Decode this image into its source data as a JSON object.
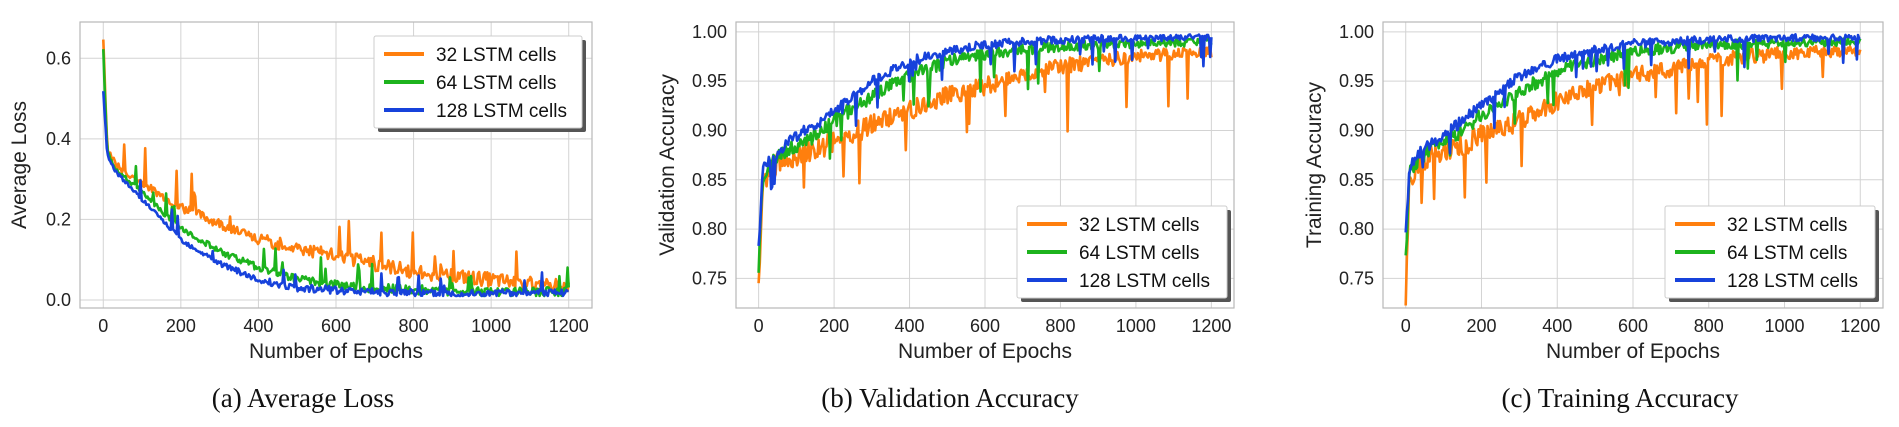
{
  "colors": {
    "s32": "#ff7f0e",
    "s64": "#1db31d",
    "s128": "#1742db",
    "grid": "#d3d3d3",
    "frame": "#b8b8b8"
  },
  "chart_data": [
    {
      "type": "line",
      "caption": "(a) Average Loss",
      "xlabel": "Number of Epochs",
      "ylabel": "Average Loss",
      "xlim": [
        -60,
        1260
      ],
      "ylim": [
        -0.02,
        0.69
      ],
      "xticks": [
        0,
        200,
        400,
        600,
        800,
        1000,
        1200
      ],
      "yticks": [
        0.0,
        0.2,
        0.4,
        0.6
      ],
      "xtick_labels": [
        "0",
        "200",
        "400",
        "600",
        "800",
        "1000",
        "1200"
      ],
      "ytick_labels": [
        "0.0",
        "0.2",
        "0.4",
        "0.6"
      ],
      "grid": true,
      "legend": "top-right",
      "series": [
        {
          "name": "32 LSTM cells",
          "x": [
            0,
            10,
            30,
            60,
            100,
            150,
            200,
            300,
            400,
            500,
            600,
            700,
            800,
            900,
            1000,
            1100,
            1200
          ],
          "y": [
            0.65,
            0.38,
            0.34,
            0.31,
            0.29,
            0.26,
            0.23,
            0.19,
            0.15,
            0.13,
            0.11,
            0.09,
            0.07,
            0.06,
            0.05,
            0.04,
            0.035
          ]
        },
        {
          "name": "64 LSTM cells",
          "x": [
            0,
            10,
            30,
            60,
            100,
            150,
            200,
            300,
            400,
            500,
            600,
            700,
            800,
            900,
            1000,
            1100,
            1200
          ],
          "y": [
            0.62,
            0.37,
            0.33,
            0.3,
            0.27,
            0.22,
            0.18,
            0.12,
            0.08,
            0.05,
            0.04,
            0.03,
            0.025,
            0.022,
            0.02,
            0.02,
            0.02
          ]
        },
        {
          "name": "128 LSTM cells",
          "x": [
            0,
            10,
            30,
            60,
            100,
            150,
            200,
            300,
            400,
            500,
            600,
            700,
            800,
            900,
            1000,
            1100,
            1200
          ],
          "y": [
            0.52,
            0.36,
            0.32,
            0.29,
            0.25,
            0.2,
            0.15,
            0.09,
            0.05,
            0.03,
            0.025,
            0.02,
            0.018,
            0.017,
            0.016,
            0.016,
            0.016
          ]
        }
      ]
    },
    {
      "type": "line",
      "caption": "(b) Validation Accuracy",
      "xlabel": "Number of Epochs",
      "ylabel": "Validation Accuracy",
      "xlim": [
        -60,
        1260
      ],
      "ylim": [
        0.72,
        1.01
      ],
      "xticks": [
        0,
        200,
        400,
        600,
        800,
        1000,
        1200
      ],
      "yticks": [
        0.75,
        0.8,
        0.85,
        0.9,
        0.95,
        1.0
      ],
      "xtick_labels": [
        "0",
        "200",
        "400",
        "600",
        "800",
        "1000",
        "1200"
      ],
      "ytick_labels": [
        "0.75",
        "0.80",
        "0.85",
        "0.90",
        "0.95",
        "1.00"
      ],
      "grid": true,
      "legend": "bottom-right",
      "series": [
        {
          "name": "32 LSTM cells",
          "x": [
            0,
            10,
            30,
            60,
            100,
            150,
            200,
            300,
            400,
            500,
            600,
            700,
            800,
            900,
            1000,
            1100,
            1200
          ],
          "y": [
            0.74,
            0.84,
            0.86,
            0.87,
            0.875,
            0.88,
            0.89,
            0.905,
            0.92,
            0.935,
            0.945,
            0.955,
            0.965,
            0.97,
            0.975,
            0.978,
            0.98
          ]
        },
        {
          "name": "64 LSTM cells",
          "x": [
            0,
            10,
            30,
            60,
            100,
            150,
            200,
            300,
            400,
            500,
            600,
            700,
            800,
            900,
            1000,
            1100,
            1200
          ],
          "y": [
            0.76,
            0.85,
            0.865,
            0.875,
            0.885,
            0.895,
            0.91,
            0.935,
            0.955,
            0.97,
            0.978,
            0.982,
            0.985,
            0.987,
            0.988,
            0.989,
            0.99
          ]
        },
        {
          "name": "128 LSTM cells",
          "x": [
            0,
            10,
            30,
            60,
            100,
            150,
            200,
            300,
            400,
            500,
            600,
            700,
            800,
            900,
            1000,
            1100,
            1200
          ],
          "y": [
            0.78,
            0.86,
            0.87,
            0.88,
            0.895,
            0.905,
            0.92,
            0.95,
            0.97,
            0.98,
            0.987,
            0.99,
            0.992,
            0.993,
            0.994,
            0.994,
            0.995
          ]
        }
      ]
    },
    {
      "type": "line",
      "caption": "(c) Training Accuracy",
      "xlabel": "Number of Epochs",
      "ylabel": "Training Accuracy",
      "xlim": [
        -60,
        1260
      ],
      "ylim": [
        0.72,
        1.01
      ],
      "xticks": [
        0,
        200,
        400,
        600,
        800,
        1000,
        1200
      ],
      "yticks": [
        0.75,
        0.8,
        0.85,
        0.9,
        0.95,
        1.0
      ],
      "xtick_labels": [
        "0",
        "200",
        "400",
        "600",
        "800",
        "1000",
        "1200"
      ],
      "ytick_labels": [
        "0.75",
        "0.80",
        "0.85",
        "0.90",
        "0.95",
        "1.00"
      ],
      "grid": true,
      "legend": "bottom-right",
      "series": [
        {
          "name": "32 LSTM cells",
          "x": [
            0,
            10,
            30,
            60,
            100,
            150,
            200,
            300,
            400,
            500,
            600,
            700,
            800,
            900,
            1000,
            1100,
            1200
          ],
          "y": [
            0.73,
            0.85,
            0.865,
            0.875,
            0.88,
            0.885,
            0.895,
            0.91,
            0.93,
            0.945,
            0.955,
            0.963,
            0.97,
            0.975,
            0.978,
            0.98,
            0.982
          ]
        },
        {
          "name": "64 LSTM cells",
          "x": [
            0,
            10,
            30,
            60,
            100,
            150,
            200,
            300,
            400,
            500,
            600,
            700,
            800,
            900,
            1000,
            1100,
            1200
          ],
          "y": [
            0.77,
            0.855,
            0.87,
            0.88,
            0.89,
            0.9,
            0.915,
            0.94,
            0.96,
            0.972,
            0.98,
            0.984,
            0.986,
            0.988,
            0.989,
            0.99,
            0.99
          ]
        },
        {
          "name": "128 LSTM cells",
          "x": [
            0,
            10,
            30,
            60,
            100,
            150,
            200,
            300,
            400,
            500,
            600,
            700,
            800,
            900,
            1000,
            1100,
            1200
          ],
          "y": [
            0.8,
            0.86,
            0.875,
            0.885,
            0.895,
            0.91,
            0.925,
            0.955,
            0.972,
            0.982,
            0.988,
            0.99,
            0.992,
            0.993,
            0.994,
            0.994,
            0.995
          ]
        }
      ]
    }
  ]
}
